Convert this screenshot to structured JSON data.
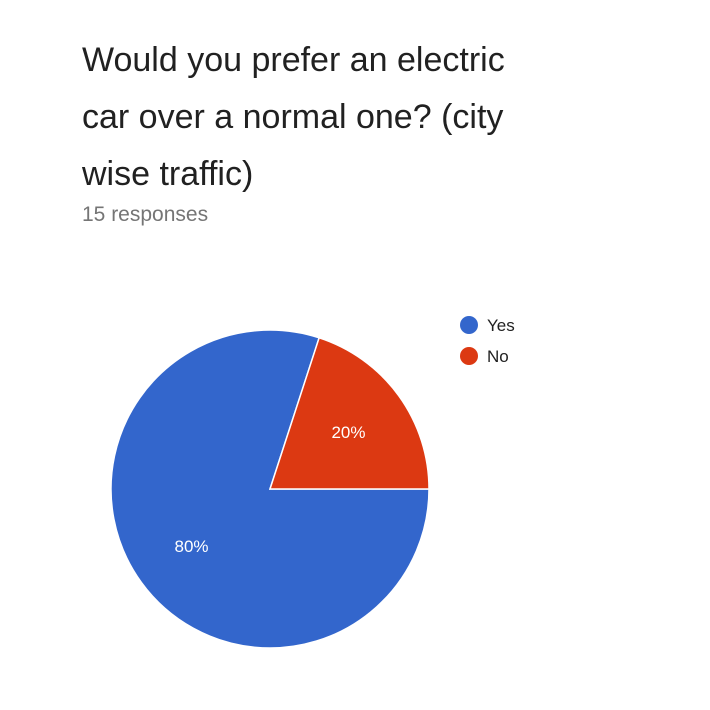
{
  "question": {
    "title": "Would you prefer an electric car over a normal one? (city wise traffic)",
    "responses": "15 responses"
  },
  "chart_data": {
    "type": "pie",
    "categories": [
      "Yes",
      "No"
    ],
    "values": [
      80,
      20
    ],
    "labels": [
      "80%",
      "20%"
    ],
    "colors": [
      "#3366cc",
      "#dc3912"
    ],
    "legend_position": "top-right"
  }
}
